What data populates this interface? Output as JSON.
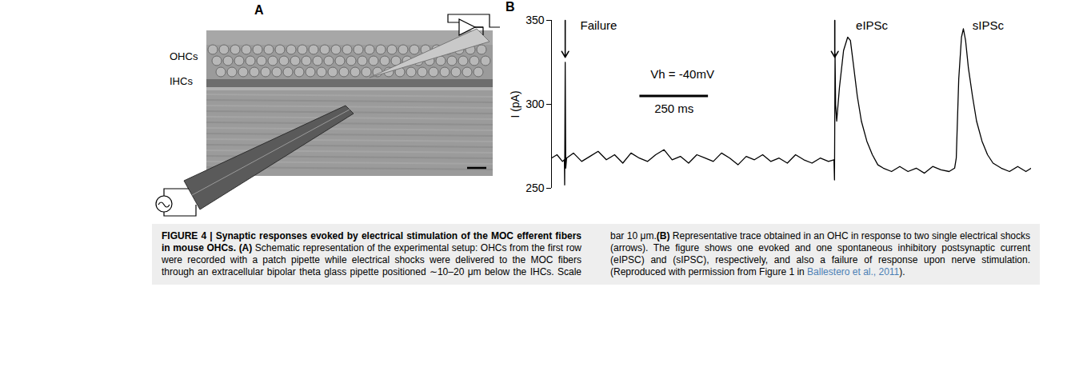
{
  "panel_a": {
    "label": "A",
    "row_labels": [
      "OHCs",
      "IHCs"
    ]
  },
  "chart_data": {
    "panel_label": "B",
    "type": "line",
    "y_label": "I (pA)",
    "color": "#000000",
    "x": [
      0,
      20,
      40,
      47,
      48,
      50,
      52,
      55,
      80,
      110,
      140,
      170,
      200,
      230,
      260,
      290,
      320,
      350,
      380,
      410,
      440,
      470,
      500,
      530,
      560,
      590,
      620,
      650,
      680,
      710,
      740,
      770,
      800,
      830,
      860,
      890,
      920,
      950,
      980,
      1010,
      1030,
      1032,
      1034,
      1036,
      1040,
      1050,
      1065,
      1080,
      1090,
      1100,
      1115,
      1130,
      1150,
      1170,
      1190,
      1210,
      1240,
      1270,
      1300,
      1330,
      1360,
      1390,
      1420,
      1450,
      1470,
      1476,
      1485,
      1495,
      1502,
      1510,
      1520,
      1535,
      1550,
      1570,
      1590,
      1610,
      1640,
      1670,
      1700,
      1730,
      1750
    ],
    "values": [
      268,
      270,
      266,
      267,
      252,
      325,
      262,
      268,
      271,
      266,
      269,
      272,
      267,
      270,
      265,
      271,
      268,
      266,
      270,
      273,
      267,
      269,
      265,
      270,
      268,
      266,
      271,
      268,
      264,
      269,
      267,
      270,
      266,
      268,
      265,
      270,
      267,
      265,
      268,
      266,
      267,
      255,
      330,
      300,
      290,
      310,
      332,
      340,
      338,
      325,
      305,
      290,
      278,
      270,
      264,
      262,
      260,
      263,
      260,
      262,
      259,
      263,
      261,
      260,
      262,
      268,
      315,
      340,
      345,
      338,
      322,
      305,
      290,
      278,
      270,
      265,
      262,
      260,
      263,
      260,
      262
    ],
    "xlim": [
      0,
      1750
    ],
    "ylim": [
      250,
      350
    ],
    "yticks": [
      250,
      300,
      350
    ],
    "tick_labels": "y",
    "stimuli": [
      50,
      1033
    ],
    "annotations": [
      {
        "text": "Failure",
        "x": 105,
        "y": 347
      },
      {
        "text": "eIPSc",
        "x": 1110,
        "y": 347
      },
      {
        "text": "sIPSc",
        "x": 1535,
        "y": 347
      },
      {
        "text": "Vh = -40mV",
        "x": 361,
        "y": 318
      }
    ],
    "scale_bar": {
      "label": "250 ms",
      "length": 250,
      "x": 322,
      "y": 305
    }
  },
  "caption": {
    "segments": [
      {
        "text": "FIGURE 4 | Synaptic responses evoked by electrical stimulation of the MOC efferent fibers in mouse OHCs.",
        "bold": true
      },
      {
        "text": " (A)",
        "bold": true
      },
      {
        "text": " Schematic representation of the experimental setup: OHCs from the first row were recorded with a patch pipette while electrical shocks were delivered to the MOC fibers through an extracellular bipolar theta glass pipette positioned ∼10–20 μm below the IHCs. Scale bar 10 μm."
      },
      {
        "text": "(B)",
        "bold": true
      },
      {
        "text": " Representative trace obtained in an OHC in response to two single electrical shocks (arrows). The figure shows one evoked and one spontaneous inhibitory postsynaptic current (eIPSC) and (sIPSC), respectively, and also a failure of response upon nerve stimulation. (Reproduced with permission from Figure 1 in "
      },
      {
        "text": "Ballestero et al., 2011",
        "link": true
      },
      {
        "text": ")."
      }
    ]
  }
}
